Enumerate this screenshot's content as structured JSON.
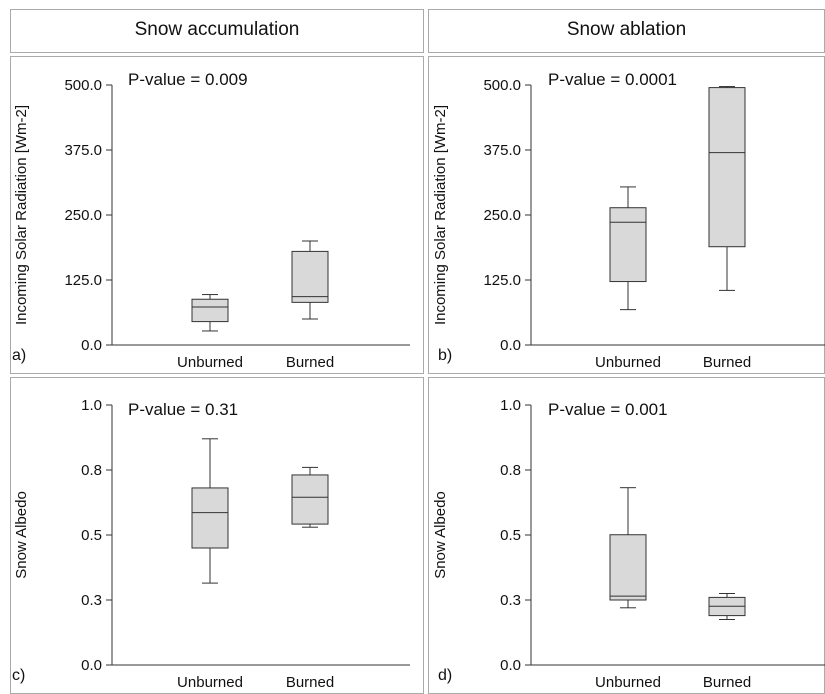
{
  "columns": {
    "left": "Snow accumulation",
    "right": "Snow ablation"
  },
  "colors": {
    "box_fill": "#d9d9d9",
    "stroke": "#333333",
    "frame": "#aaaaaa"
  },
  "chart_data": [
    {
      "type": "box",
      "panel": "a)",
      "annotation": "P-value = 0.009",
      "ylabel": "Incoming Solar Radiation [Wm-2]",
      "ylim": [
        0,
        500
      ],
      "yticks": [
        0,
        125,
        250,
        375,
        500
      ],
      "ytick_labels": [
        "0.0",
        "125.0",
        "250.0",
        "375.0",
        "500.0"
      ],
      "categories": [
        "Unburned",
        "Burned"
      ],
      "boxes": [
        {
          "whisker_low": 27,
          "q1": 45,
          "median": 73,
          "q3": 88,
          "whisker_high": 97
        },
        {
          "whisker_low": 50,
          "q1": 82,
          "median": 93,
          "q3": 180,
          "whisker_high": 200
        }
      ]
    },
    {
      "type": "box",
      "panel": "b)",
      "annotation": "P-value = 0.0001",
      "ylabel": "Incoming Solar Radiation [Wm-2]",
      "ylim": [
        0,
        500
      ],
      "yticks": [
        0,
        125,
        250,
        375,
        500
      ],
      "ytick_labels": [
        "0.0",
        "125.0",
        "250.0",
        "375.0",
        "500.0"
      ],
      "categories": [
        "Unburned",
        "Burned"
      ],
      "boxes": [
        {
          "whisker_low": 68,
          "q1": 122,
          "median": 236,
          "q3": 264,
          "whisker_high": 304
        },
        {
          "whisker_low": 105,
          "q1": 189,
          "median": 370,
          "q3": 495,
          "whisker_high": 497
        }
      ]
    },
    {
      "type": "box",
      "panel": "c)",
      "annotation": "P-value = 0.31",
      "ylabel": "Snow Albedo",
      "ylim": [
        0,
        1
      ],
      "yticks": [
        0,
        0.25,
        0.5,
        0.75,
        1
      ],
      "ytick_labels": [
        "0.0",
        "0.3",
        "0.5",
        "0.8",
        "1.0"
      ],
      "categories": [
        "Unburned",
        "Burned"
      ],
      "boxes": [
        {
          "whisker_low": 0.315,
          "q1": 0.45,
          "median": 0.586,
          "q3": 0.681,
          "whisker_high": 0.87
        },
        {
          "whisker_low": 0.53,
          "q1": 0.542,
          "median": 0.645,
          "q3": 0.731,
          "whisker_high": 0.76
        }
      ]
    },
    {
      "type": "box",
      "panel": "d)",
      "annotation": "P-value = 0.001",
      "ylabel": "Snow Albedo",
      "ylim": [
        0,
        1
      ],
      "yticks": [
        0,
        0.25,
        0.5,
        0.75,
        1
      ],
      "ytick_labels": [
        "0.0",
        "0.3",
        "0.5",
        "0.8",
        "1.0"
      ],
      "categories": [
        "Unburned",
        "Burned"
      ],
      "boxes": [
        {
          "whisker_low": 0.22,
          "q1": 0.25,
          "median": 0.265,
          "q3": 0.501,
          "whisker_high": 0.682
        },
        {
          "whisker_low": 0.175,
          "q1": 0.19,
          "median": 0.226,
          "q3": 0.26,
          "whisker_high": 0.275
        }
      ]
    }
  ]
}
